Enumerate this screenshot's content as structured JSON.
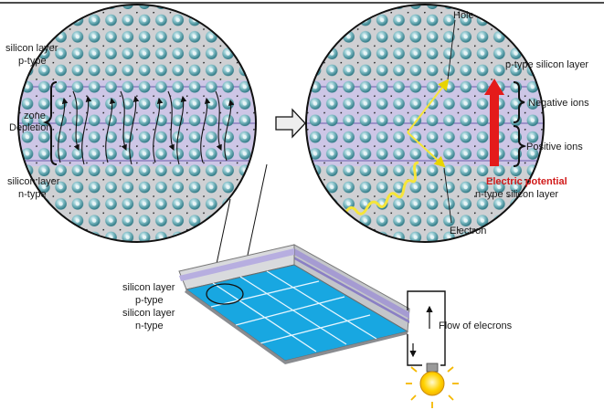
{
  "labels": {
    "hole": "Hole",
    "ptype_right": "p-type silicon layer",
    "negative_ions": "Negative ions",
    "positive_ions": "Positive ions",
    "electric_potential": "Electric potential",
    "ntype_right": "n-type silicon layer",
    "electron": "Electron",
    "ptype_left_1": "p-type",
    "ptype_left_2": "silicon layer",
    "depletion_1": "Depletion",
    "depletion_2": "zone",
    "ntype_left_1": "n-type",
    "ntype_left_2": "silicon layer",
    "panel_ptype_1": "p-type",
    "panel_ptype_2": "silicon layer",
    "panel_ntype_1": "n-type",
    "panel_ntype_2": "silicon layer",
    "flow": "Flow of elecrons"
  },
  "colors": {
    "silicon_gray": "#cfd0d3",
    "depletion_purple": "#cdc6e6",
    "atom_teal": "#5fa8b3",
    "panel_blue": "#18a7e1",
    "arrow_red": "#e41b1b",
    "photon_yellow": "#f5e53a",
    "bulb_yellow": "#ffd200"
  },
  "icons": {
    "arrow": "right-arrow-icon",
    "bulb": "light-bulb-icon"
  }
}
